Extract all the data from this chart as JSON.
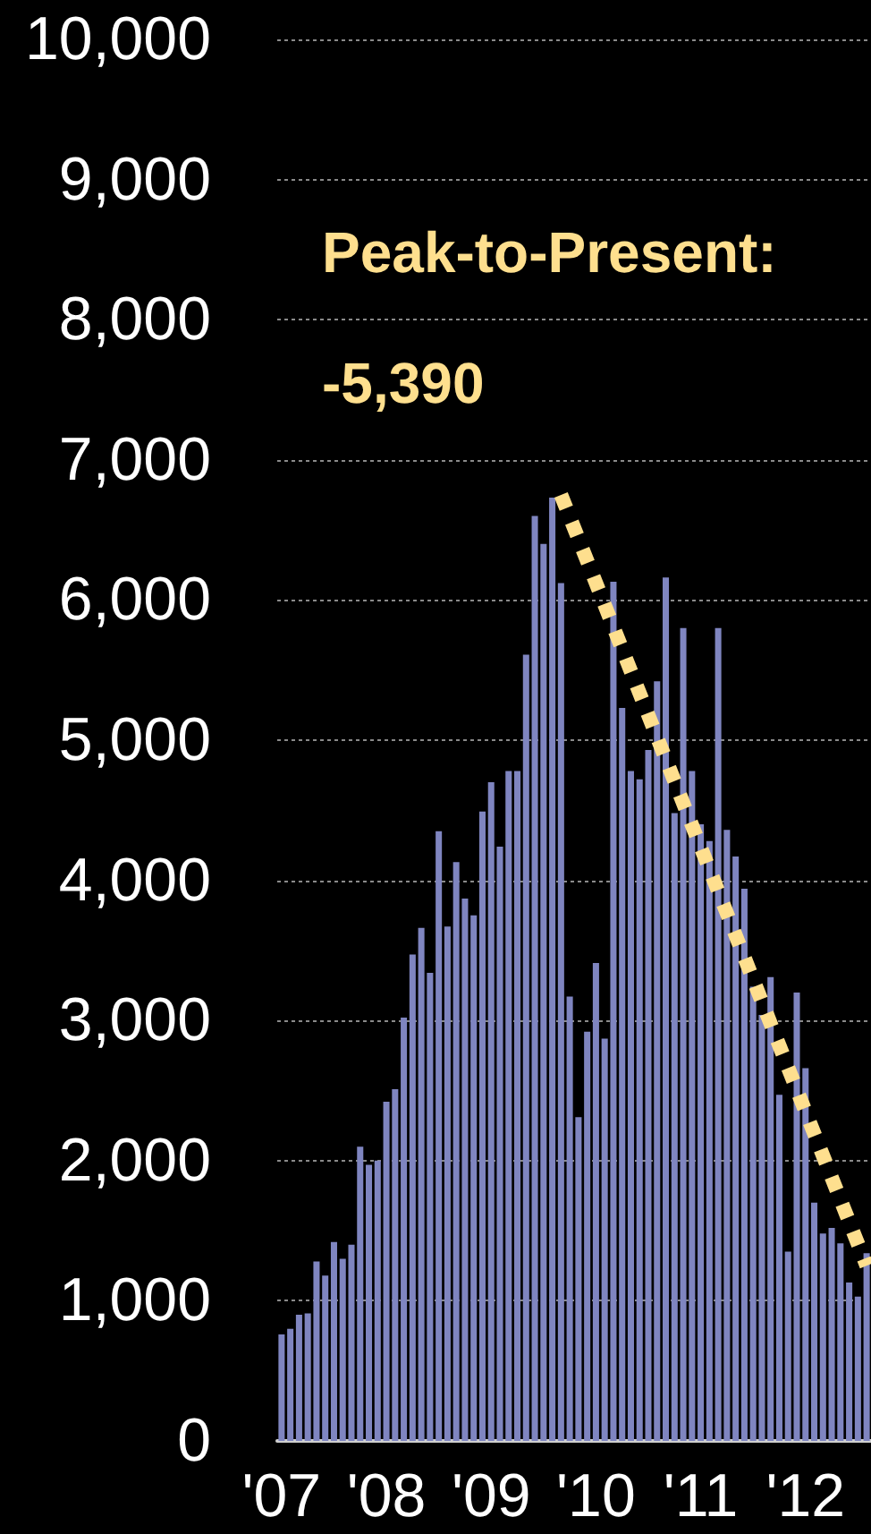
{
  "chart_data": {
    "type": "bar",
    "categories": [
      "'07",
      null,
      null,
      null,
      null,
      null,
      null,
      null,
      null,
      null,
      null,
      null,
      "'08",
      null,
      null,
      null,
      null,
      null,
      null,
      null,
      null,
      null,
      null,
      null,
      "'09",
      null,
      null,
      null,
      null,
      null,
      null,
      null,
      null,
      null,
      null,
      null,
      "'10",
      null,
      null,
      null,
      null,
      null,
      null,
      null,
      null,
      null,
      null,
      null,
      "'11",
      null,
      null,
      null,
      null,
      null,
      null,
      null,
      null,
      null,
      null,
      null,
      "'12",
      null,
      null,
      null,
      null,
      null,
      null,
      null
    ],
    "series": [
      {
        "color": "#7f85c0",
        "values": [
          760,
          800,
          900,
          910,
          1280,
          1180,
          1420,
          1300,
          1400,
          2100,
          1970,
          2000,
          2420,
          2510,
          3020,
          3470,
          3660,
          3340,
          4350,
          3670,
          4130,
          3870,
          3750,
          4490,
          4700,
          4240,
          4780,
          4780,
          5610,
          6600,
          6400,
          6730,
          6120,
          3170,
          2310,
          2920,
          3410,
          2870,
          6130,
          5230,
          4780,
          4720,
          4930,
          5420,
          6160,
          4480,
          5800,
          4780,
          4400,
          4280,
          5800,
          4360,
          4170,
          3940,
          3240,
          3040,
          3310,
          2470,
          1350,
          3200,
          2660,
          1700,
          1480,
          1520,
          1410,
          1130,
          1030,
          1340
        ]
      },
      {
        "type": "line",
        "color": "#fedf8e",
        "line_style": "dotted",
        "marker": "none",
        "values": [
          null,
          null,
          null,
          null,
          null,
          null,
          null,
          null,
          null,
          null,
          null,
          null,
          null,
          null,
          null,
          null,
          null,
          null,
          null,
          null,
          null,
          null,
          null,
          null,
          null,
          null,
          null,
          null,
          null,
          null,
          null,
          null,
          6750,
          null,
          null,
          null,
          null,
          null,
          null,
          null,
          null,
          null,
          null,
          null,
          null,
          null,
          null,
          null,
          null,
          null,
          null,
          null,
          null,
          null,
          null,
          null,
          null,
          null,
          null,
          null,
          null,
          null,
          null,
          null,
          null,
          null,
          null,
          1250
        ]
      }
    ],
    "ylim": [
      0,
      10000
    ],
    "yticks": [
      0,
      {
        "value": 1000,
        "label": "1,000"
      },
      {
        "value": 2000,
        "label": "2,000"
      },
      {
        "value": 3000,
        "label": "3,000"
      },
      {
        "value": 4000,
        "label": "4,000"
      },
      {
        "value": 5000,
        "label": "5,000"
      },
      {
        "value": 6000,
        "label": "6,000"
      },
      {
        "value": 7000,
        "label": "7,000"
      },
      {
        "value": 8000,
        "label": "8,000"
      },
      {
        "value": 9000,
        "label": "9,000"
      },
      {
        "value": 10000,
        "label": "10,000"
      }
    ],
    "grid": "y",
    "annotations": [
      "Peak-to-Present:",
      "-5,390"
    ]
  }
}
